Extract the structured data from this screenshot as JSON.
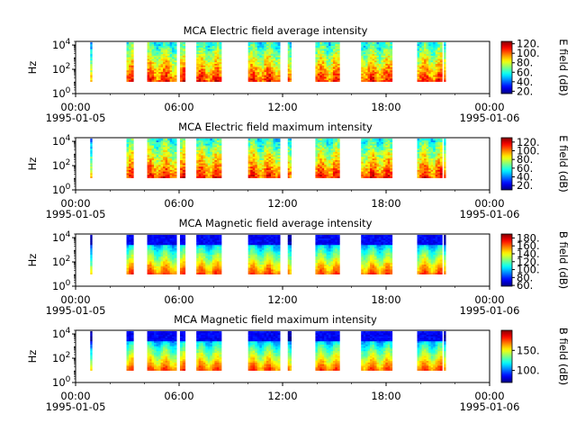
{
  "chart_data": [
    {
      "type": "heatmap",
      "title": "MCA  Electric field average intensity",
      "ylabel": "Hz",
      "y_scale": "log",
      "ylim": [
        1,
        20000
      ],
      "y_ticks": [
        {
          "base": "10",
          "exp": "0"
        },
        {
          "base": "10",
          "exp": "2"
        },
        {
          "base": "10",
          "exp": "4"
        }
      ],
      "x_ticks": [
        "00:00",
        "06:00",
        "12:00",
        "18:00",
        "00:00"
      ],
      "x_dates": [
        "1995-01-05",
        "1995-01-06"
      ],
      "xlim": [
        "1995-01-05 00:00",
        "1995-01-06 00:00"
      ],
      "colorbar": {
        "label": "E field (dB)",
        "range": [
          15,
          125
        ],
        "ticks": [
          "20",
          "40",
          "60",
          "80",
          "100",
          "120"
        ],
        "colormap": "jet"
      },
      "data_intervals_hours": [
        [
          0.85,
          0.95
        ],
        [
          2.95,
          3.35
        ],
        [
          4.15,
          5.85
        ],
        [
          6.05,
          6.35
        ],
        [
          7.0,
          8.45
        ],
        [
          10.0,
          11.85
        ],
        [
          12.3,
          12.5
        ],
        [
          13.9,
          15.3
        ],
        [
          16.55,
          18.35
        ],
        [
          19.8,
          21.25
        ],
        [
          21.35,
          21.45
        ]
      ],
      "intensity_profile": "high at low frequencies, decreasing with frequency"
    },
    {
      "type": "heatmap",
      "title": "MCA  Electric field maximum intensity",
      "ylabel": "Hz",
      "y_scale": "log",
      "ylim": [
        1,
        20000
      ],
      "y_ticks": [
        {
          "base": "10",
          "exp": "0"
        },
        {
          "base": "10",
          "exp": "2"
        },
        {
          "base": "10",
          "exp": "4"
        }
      ],
      "x_ticks": [
        "00:00",
        "06:00",
        "12:00",
        "18:00",
        "00:00"
      ],
      "x_dates": [
        "1995-01-05",
        "1995-01-06"
      ],
      "xlim": [
        "1995-01-05 00:00",
        "1995-01-06 00:00"
      ],
      "colorbar": {
        "label": "E field (dB)",
        "range": [
          10,
          130
        ],
        "ticks": [
          "20",
          "40",
          "60",
          "80",
          "100",
          "120"
        ],
        "colormap": "jet"
      },
      "data_intervals_hours": [
        [
          0.85,
          0.95
        ],
        [
          2.95,
          3.35
        ],
        [
          4.15,
          5.85
        ],
        [
          6.05,
          6.35
        ],
        [
          7.0,
          8.45
        ],
        [
          10.0,
          11.85
        ],
        [
          12.3,
          12.5
        ],
        [
          13.9,
          15.3
        ],
        [
          16.55,
          18.35
        ],
        [
          19.8,
          21.25
        ],
        [
          21.35,
          21.45
        ]
      ],
      "intensity_profile": "high at low frequencies, decreasing with frequency"
    },
    {
      "type": "heatmap",
      "title": "MCA  Magnetic field average intensity",
      "ylabel": "Hz",
      "y_scale": "log",
      "ylim": [
        1,
        20000
      ],
      "y_ticks": [
        {
          "base": "10",
          "exp": "0"
        },
        {
          "base": "10",
          "exp": "2"
        },
        {
          "base": "10",
          "exp": "4"
        }
      ],
      "x_ticks": [
        "00:00",
        "06:00",
        "12:00",
        "18:00",
        "00:00"
      ],
      "x_dates": [
        "1995-01-05",
        "1995-01-06"
      ],
      "xlim": [
        "1995-01-05 00:00",
        "1995-01-06 00:00"
      ],
      "colorbar": {
        "label": "B field (dB)",
        "range": [
          58,
          190
        ],
        "ticks": [
          "60",
          "80",
          "100",
          "120",
          "140",
          "160",
          "180"
        ],
        "colormap": "jet"
      },
      "data_intervals_hours": [
        [
          0.85,
          0.95
        ],
        [
          2.95,
          3.35
        ],
        [
          4.15,
          5.85
        ],
        [
          6.05,
          6.35
        ],
        [
          7.0,
          8.45
        ],
        [
          10.0,
          11.85
        ],
        [
          12.3,
          12.5
        ],
        [
          13.9,
          15.3
        ],
        [
          16.55,
          18.35
        ],
        [
          19.8,
          21.25
        ],
        [
          21.35,
          21.45
        ]
      ],
      "intensity_profile": "high at low frequencies, low (blue) at top frequencies"
    },
    {
      "type": "heatmap",
      "title": "MCA  Magnetic field maximum intensity",
      "ylabel": "Hz",
      "y_scale": "log",
      "ylim": [
        1,
        20000
      ],
      "y_ticks": [
        {
          "base": "10",
          "exp": "0"
        },
        {
          "base": "10",
          "exp": "2"
        },
        {
          "base": "10",
          "exp": "4"
        }
      ],
      "x_ticks": [
        "00:00",
        "06:00",
        "12:00",
        "18:00",
        "00:00"
      ],
      "x_dates": [
        "1995-01-05",
        "1995-01-06"
      ],
      "xlim": [
        "1995-01-05 00:00",
        "1995-01-06 00:00"
      ],
      "colorbar": {
        "label": "B field (dB)",
        "range": [
          70,
          200
        ],
        "ticks": [
          "100",
          "150"
        ],
        "tick_suffix": ".",
        "colormap": "jet"
      },
      "data_intervals_hours": [
        [
          0.85,
          0.95
        ],
        [
          2.95,
          3.35
        ],
        [
          4.15,
          5.85
        ],
        [
          6.05,
          6.35
        ],
        [
          7.0,
          8.45
        ],
        [
          10.0,
          11.85
        ],
        [
          12.3,
          12.5
        ],
        [
          13.9,
          15.3
        ],
        [
          16.55,
          18.35
        ],
        [
          19.8,
          21.25
        ],
        [
          21.35,
          21.45
        ]
      ],
      "intensity_profile": "high at low frequencies, low (blue) at top frequencies"
    }
  ]
}
